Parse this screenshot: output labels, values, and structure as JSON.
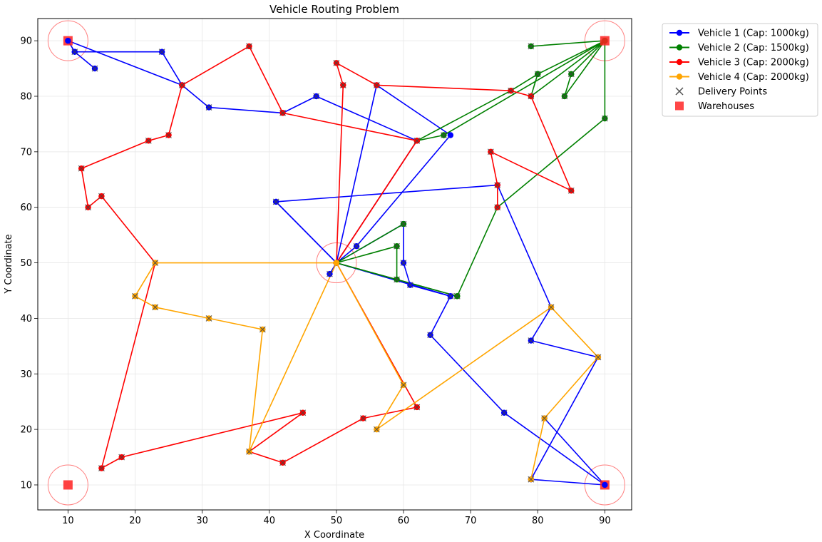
{
  "chart_data": {
    "type": "line",
    "title": "Vehicle Routing Problem",
    "xlabel": "X Coordinate",
    "ylabel": "Y Coordinate",
    "xlim": [
      5.5,
      94
    ],
    "ylim": [
      5.5,
      94
    ],
    "xticks": [
      10,
      20,
      30,
      40,
      50,
      60,
      70,
      80,
      90
    ],
    "yticks": [
      10,
      20,
      30,
      40,
      50,
      60,
      70,
      80,
      90
    ],
    "grid": true,
    "legend_position": "outside-top-right",
    "depots": [
      [
        10,
        90
      ],
      [
        90,
        90
      ],
      [
        50,
        50
      ],
      [
        10,
        10
      ],
      [
        90,
        10
      ]
    ],
    "series": [
      {
        "name": "Vehicle 1 (Cap: 1000kg)",
        "color": "#0000ff",
        "routes": [
          [
            [
              10,
              90
            ],
            [
              11,
              88
            ],
            [
              14,
              85
            ],
            [
              11,
              88
            ],
            [
              24,
              88
            ],
            [
              27,
              82
            ],
            [
              10,
              90
            ]
          ],
          [
            [
              50,
              50
            ],
            [
              49,
              48
            ],
            [
              50,
              50
            ],
            [
              53,
              53
            ],
            [
              67,
              73
            ],
            [
              56,
              82
            ],
            [
              50,
              50
            ],
            [
              60,
              57
            ],
            [
              60,
              50
            ],
            [
              61,
              46
            ],
            [
              67,
              44
            ],
            [
              50,
              50
            ]
          ],
          [
            [
              50,
              50
            ],
            [
              41,
              61
            ],
            [
              74,
              64
            ],
            [
              82,
              42
            ],
            [
              79,
              36
            ],
            [
              89,
              33
            ],
            [
              79,
              11
            ],
            [
              90,
              10
            ],
            [
              79,
              11
            ],
            [
              90,
              10
            ],
            [
              81,
              22
            ],
            [
              90,
              10
            ],
            [
              75,
              23
            ],
            [
              64,
              37
            ],
            [
              67,
              44
            ],
            [
              50,
              50
            ]
          ],
          [
            [
              50,
              50
            ],
            [
              41,
              61
            ],
            [
              50,
              50
            ]
          ],
          [
            [
              27,
              82
            ],
            [
              31,
              78
            ],
            [
              42,
              77
            ],
            [
              47,
              80
            ],
            [
              62,
              72
            ],
            [
              50,
              50
            ]
          ]
        ]
      },
      {
        "name": "Vehicle 2 (Cap: 1500kg)",
        "color": "#008000",
        "routes": [
          [
            [
              90,
              90
            ],
            [
              79,
              89
            ],
            [
              90,
              90
            ],
            [
              80,
              84
            ],
            [
              90,
              90
            ],
            [
              85,
              84
            ],
            [
              84,
              80
            ],
            [
              90,
              90
            ],
            [
              90,
              76
            ],
            [
              74,
              60
            ],
            [
              68,
              44
            ],
            [
              50,
              50
            ]
          ],
          [
            [
              90,
              90
            ],
            [
              79,
              80
            ],
            [
              80,
              84
            ],
            [
              76,
              81
            ],
            [
              62,
              72
            ],
            [
              66,
              73
            ],
            [
              90,
              90
            ]
          ],
          [
            [
              50,
              50
            ],
            [
              60,
              57
            ],
            [
              50,
              50
            ],
            [
              59,
              53
            ],
            [
              59,
              47
            ],
            [
              68,
              44
            ],
            [
              50,
              50
            ]
          ]
        ]
      },
      {
        "name": "Vehicle 3 (Cap: 2000kg)",
        "color": "#ff0000",
        "routes": [
          [
            [
              50,
              50
            ],
            [
              51,
              82
            ],
            [
              50,
              86
            ],
            [
              56,
              82
            ],
            [
              76,
              81
            ],
            [
              79,
              80
            ],
            [
              85,
              63
            ],
            [
              73,
              70
            ],
            [
              74,
              64
            ],
            [
              74,
              60
            ]
          ],
          [
            [
              50,
              50
            ],
            [
              62,
              72
            ],
            [
              42,
              77
            ],
            [
              37,
              89
            ],
            [
              27,
              82
            ],
            [
              25,
              73
            ],
            [
              22,
              72
            ],
            [
              12,
              67
            ],
            [
              13,
              60
            ],
            [
              15,
              62
            ],
            [
              23,
              50
            ],
            [
              15,
              13
            ],
            [
              18,
              15
            ],
            [
              45,
              23
            ],
            [
              37,
              16
            ],
            [
              42,
              14
            ],
            [
              54,
              22
            ],
            [
              62,
              24
            ],
            [
              50,
              50
            ]
          ],
          [
            [
              50,
              50
            ],
            [
              62,
              72
            ]
          ]
        ]
      },
      {
        "name": "Vehicle 4 (Cap: 2000kg)",
        "color": "#ffa500",
        "routes": [
          [
            [
              50,
              50
            ],
            [
              23,
              50
            ],
            [
              20,
              44
            ],
            [
              23,
              42
            ],
            [
              31,
              40
            ],
            [
              39,
              38
            ],
            [
              37,
              16
            ],
            [
              50,
              50
            ],
            [
              60,
              28
            ],
            [
              56,
              20
            ],
            [
              82,
              42
            ],
            [
              89,
              33
            ],
            [
              81,
              22
            ],
            [
              79,
              11
            ]
          ]
        ]
      }
    ],
    "delivery_points": [
      [
        11,
        88
      ],
      [
        14,
        85
      ],
      [
        24,
        88
      ],
      [
        27,
        82
      ],
      [
        31,
        78
      ],
      [
        42,
        77
      ],
      [
        47,
        80
      ],
      [
        37,
        89
      ],
      [
        56,
        82
      ],
      [
        50,
        86
      ],
      [
        51,
        82
      ],
      [
        62,
        72
      ],
      [
        66,
        73
      ],
      [
        41,
        61
      ],
      [
        53,
        53
      ],
      [
        49,
        48
      ],
      [
        60,
        57
      ],
      [
        59,
        53
      ],
      [
        60,
        50
      ],
      [
        59,
        47
      ],
      [
        61,
        46
      ],
      [
        67,
        44
      ],
      [
        68,
        44
      ],
      [
        79,
        89
      ],
      [
        80,
        84
      ],
      [
        85,
        84
      ],
      [
        84,
        80
      ],
      [
        90,
        76
      ],
      [
        79,
        80
      ],
      [
        76,
        81
      ],
      [
        73,
        70
      ],
      [
        74,
        64
      ],
      [
        74,
        60
      ],
      [
        85,
        63
      ],
      [
        25,
        73
      ],
      [
        22,
        72
      ],
      [
        12,
        67
      ],
      [
        13,
        60
      ],
      [
        15,
        62
      ],
      [
        23,
        50
      ],
      [
        20,
        44
      ],
      [
        23,
        42
      ],
      [
        31,
        40
      ],
      [
        39,
        38
      ],
      [
        64,
        37
      ],
      [
        82,
        42
      ],
      [
        79,
        36
      ],
      [
        89,
        33
      ],
      [
        75,
        23
      ],
      [
        81,
        22
      ],
      [
        79,
        11
      ],
      [
        60,
        28
      ],
      [
        56,
        20
      ],
      [
        54,
        22
      ],
      [
        62,
        24
      ],
      [
        45,
        23
      ],
      [
        37,
        16
      ],
      [
        42,
        14
      ],
      [
        18,
        15
      ],
      [
        15,
        13
      ]
    ],
    "legend": [
      {
        "label": "Vehicle 1 (Cap: 1000kg)",
        "kind": "line",
        "color": "#0000ff"
      },
      {
        "label": "Vehicle 2 (Cap: 1500kg)",
        "kind": "line",
        "color": "#008000"
      },
      {
        "label": "Vehicle 3 (Cap: 2000kg)",
        "kind": "line",
        "color": "#ff0000"
      },
      {
        "label": "Vehicle 4 (Cap: 2000kg)",
        "kind": "line",
        "color": "#ffa500"
      },
      {
        "label": "Delivery Points",
        "kind": "x",
        "color": "#555555"
      },
      {
        "label": "Warehouses",
        "kind": "square",
        "color": "#ff3333"
      }
    ]
  }
}
